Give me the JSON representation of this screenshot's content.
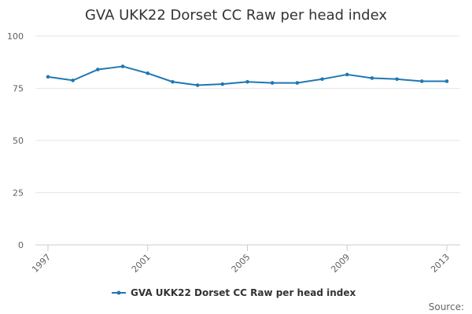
{
  "chart_data": {
    "type": "line",
    "title": "GVA UKK22 Dorset CC Raw per head index",
    "x": [
      1997,
      1998,
      1999,
      2000,
      2001,
      2002,
      2003,
      2004,
      2005,
      2006,
      2007,
      2008,
      2009,
      2010,
      2011,
      2012,
      2013
    ],
    "x_tick_labels": [
      "1997",
      "2001",
      "2005",
      "2009",
      "2013"
    ],
    "y_tick_labels": [
      "0",
      "25",
      "50",
      "75",
      "100"
    ],
    "ylim": [
      0,
      100
    ],
    "series": [
      {
        "name": "GVA UKK22 Dorset CC Raw per head index",
        "color": "#1f77b4",
        "values": [
          80.5,
          78.8,
          84.0,
          85.5,
          82.2,
          78.1,
          76.5,
          77.0,
          78.1,
          77.6,
          77.6,
          79.4,
          81.6,
          79.9,
          79.4,
          78.4,
          78.4
        ]
      }
    ],
    "grid": true,
    "legend": "bottom-center",
    "xlabel": "",
    "ylabel": ""
  },
  "credits": "Source:"
}
